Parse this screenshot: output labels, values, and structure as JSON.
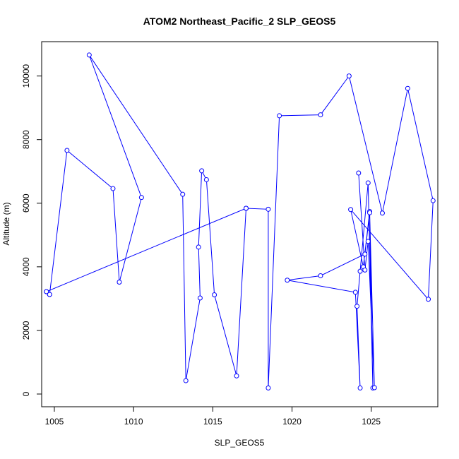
{
  "chart_data": {
    "type": "line",
    "title": "ATOM2 Northeast_Pacific_2 SLP_GEOS5",
    "xlabel": "SLP_GEOS5",
    "ylabel": "Altitude (m)",
    "xlim": [
      1004.2,
      1029.2
    ],
    "ylim": [
      -400,
      11080
    ],
    "xticks": [
      1005,
      1010,
      1015,
      1020,
      1025
    ],
    "yticks": [
      0,
      2000,
      4000,
      6000,
      8000,
      10000
    ],
    "color": "#0000ff",
    "grid": false,
    "series": [
      {
        "x": [
          1004.7,
          1004.5,
          1017.1,
          1016.5,
          1015.1,
          1014.6,
          1014.3,
          1014.1,
          1014.2,
          1013.3,
          1013.1,
          1007.2,
          1010.5,
          1009.1,
          1008.7,
          1005.8,
          1004.7,
          1004.5,
          1017.1,
          1018.5,
          1018.5,
          1019.2,
          1021.8,
          1023.6,
          1025.7,
          1027.3,
          1028.9,
          1028.6,
          1023.7,
          1024.5,
          1024.9,
          1025.1,
          1024.8,
          1024.3,
          1024.1,
          1024.3,
          1024.0,
          1019.7,
          1021.8,
          1024.6,
          1024.9,
          1025.2,
          1024.8,
          1024.6,
          1024.2
        ],
        "y": [
          3130,
          3220,
          5840,
          570,
          3120,
          6740,
          7020,
          4620,
          3020,
          420,
          6280,
          10660,
          6180,
          3520,
          6460,
          7660,
          3130,
          3220,
          5840,
          5810,
          190,
          8750,
          8780,
          10000,
          5690,
          9610,
          6080,
          2980,
          5800,
          4000,
          5740,
          190,
          6640,
          3860,
          2760,
          190,
          3200,
          3580,
          3720,
          4400,
          5700,
          200,
          4800,
          3900,
          6950
        ]
      }
    ]
  }
}
